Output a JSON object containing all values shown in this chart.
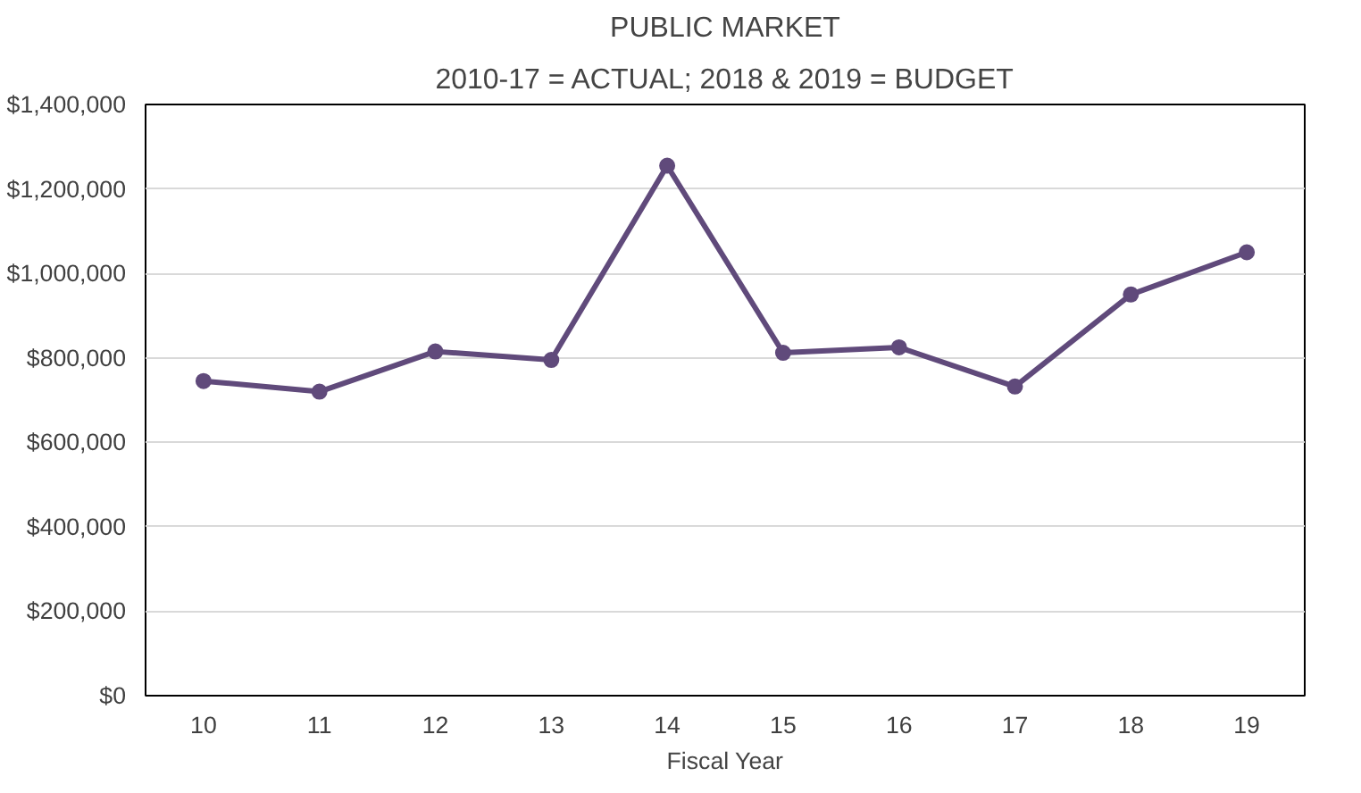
{
  "chart_data": {
    "type": "line",
    "title": "PUBLIC MARKET",
    "subtitle": "2010-17 = ACTUAL; 2018 & 2019 = BUDGET",
    "xlabel": "Fiscal Year",
    "categories": [
      "10",
      "11",
      "12",
      "13",
      "14",
      "15",
      "16",
      "17",
      "18",
      "19"
    ],
    "series": [
      {
        "color": "#604a7b",
        "values": [
          745000,
          720000,
          815000,
          795000,
          1255000,
          812000,
          825000,
          732000,
          950000,
          1050000
        ]
      }
    ],
    "ylim": [
      0,
      1400000
    ],
    "yticks": [
      {
        "value": 0,
        "label": "$0"
      },
      {
        "value": 200000,
        "label": "$200,000"
      },
      {
        "value": 400000,
        "label": "$400,000"
      },
      {
        "value": 600000,
        "label": "$600,000"
      },
      {
        "value": 800000,
        "label": "$800,000"
      },
      {
        "value": 1000000,
        "label": "$1,000,000"
      },
      {
        "value": 1200000,
        "label": "$1,200,000"
      },
      {
        "value": 1400000,
        "label": "$1,400,000"
      }
    ],
    "grid": "y",
    "marker": "circle",
    "line_style": "solid"
  }
}
